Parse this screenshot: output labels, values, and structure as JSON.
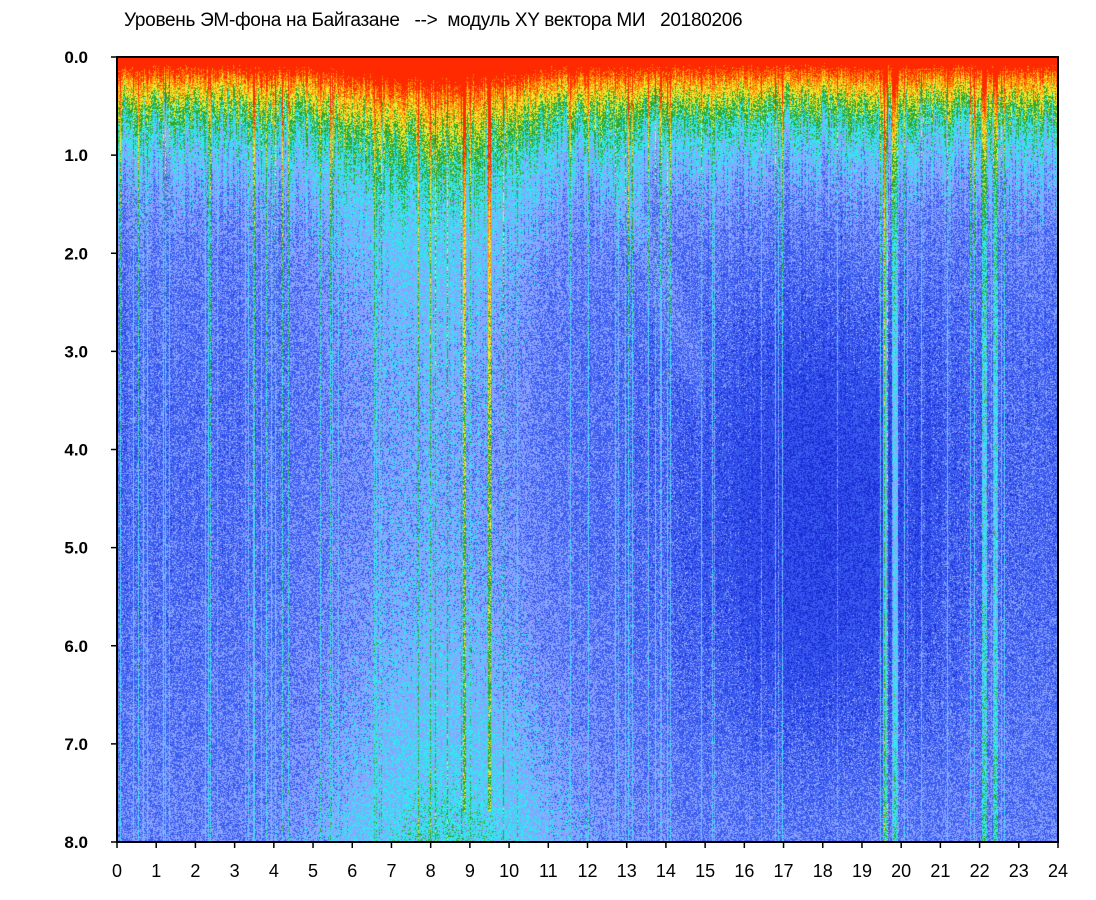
{
  "title": "Уровень ЭМ-фона на Байгазане   -->  модуль XY вектора МИ   20180206",
  "chart_data": {
    "type": "heatmap",
    "title": "Уровень ЭМ-фона на Байгазане   -->  модуль XY вектора МИ   20180206",
    "xlabel": "",
    "ylabel": "",
    "x_ticks": [
      "0",
      "1",
      "2",
      "3",
      "4",
      "5",
      "6",
      "7",
      "8",
      "9",
      "10",
      "11",
      "12",
      "13",
      "14",
      "15",
      "16",
      "17",
      "18",
      "19",
      "20",
      "21",
      "22",
      "23",
      "24"
    ],
    "y_ticks": [
      "0.0",
      "1.0",
      "2.0",
      "3.0",
      "4.0",
      "5.0",
      "6.0",
      "7.0",
      "8.0"
    ],
    "xlim": [
      0,
      24
    ],
    "ylim": [
      0,
      8
    ],
    "y_inverted": true,
    "colorscale": [
      "#1a2ed8",
      "#3b5cf0",
      "#8aa2ff",
      "#35e6f2",
      "#2ea82e",
      "#f0e830",
      "#ff8a00",
      "#ff2a00"
    ],
    "features": {
      "yellow_streaks_hours": [
        8.85,
        9.5
      ],
      "bright_column_hours": [
        19.6,
        19.85,
        22.1,
        22.4
      ]
    }
  }
}
